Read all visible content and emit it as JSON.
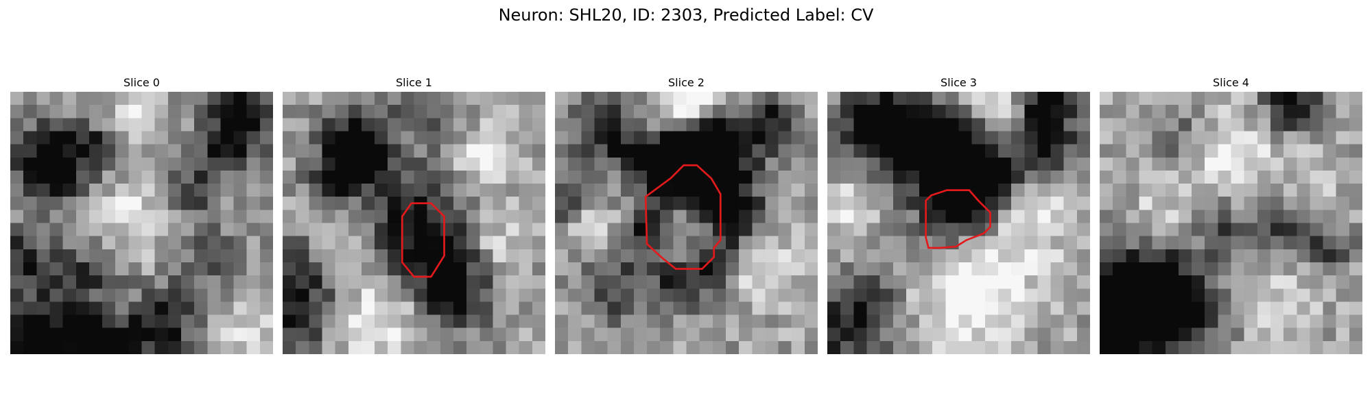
{
  "figure": {
    "title": "Neuron: SHL20, ID: 2303, Predicted Label: CV",
    "colormap": "gray",
    "outline_color": "#e31a1c"
  },
  "slices": [
    {
      "title": "Slice 0",
      "blobs": [
        {
          "x": 3.2,
          "y": 5.5,
          "r": 2.0,
          "s": -0.9
        },
        {
          "x": 7.5,
          "y": 4.0,
          "r": 1.3,
          "s": -0.4
        },
        {
          "x": 9.5,
          "y": 2.0,
          "r": 1.4,
          "s": 0.3
        },
        {
          "x": 0.8,
          "y": 13.0,
          "r": 1.8,
          "s": -0.5
        },
        {
          "x": 2.5,
          "y": 19.5,
          "r": 2.4,
          "s": -0.8
        },
        {
          "x": 7.5,
          "y": 19.5,
          "r": 1.4,
          "s": -0.8
        },
        {
          "x": 11.5,
          "y": 18.0,
          "r": 1.8,
          "s": -0.6
        },
        {
          "x": 16.5,
          "y": 4.5,
          "r": 1.7,
          "s": -0.4
        },
        {
          "x": 17.5,
          "y": 1.0,
          "r": 2.0,
          "s": -0.6
        },
        {
          "x": 13.5,
          "y": 7.5,
          "r": 1.5,
          "s": -0.4
        },
        {
          "x": 10.0,
          "y": 9.5,
          "r": 2.6,
          "s": 0.25
        },
        {
          "x": 15.0,
          "y": 13.0,
          "r": 2.2,
          "s": -0.3
        },
        {
          "x": 6.0,
          "y": 14.0,
          "r": 2.0,
          "s": -0.35
        },
        {
          "x": 17.5,
          "y": 17.5,
          "r": 1.8,
          "s": 0.2
        }
      ],
      "outline": []
    },
    {
      "title": "Slice 1",
      "blobs": [
        {
          "x": 5.5,
          "y": 4.5,
          "r": 1.8,
          "s": -0.95
        },
        {
          "x": 10.2,
          "y": 10.5,
          "r": 3.0,
          "s": -0.6
        },
        {
          "x": 12.5,
          "y": 13.5,
          "r": 1.8,
          "s": -0.4
        },
        {
          "x": 13.0,
          "y": 16.0,
          "r": 1.8,
          "s": -0.5
        },
        {
          "x": 1.5,
          "y": 14.0,
          "r": 2.2,
          "s": -0.55
        },
        {
          "x": 1.0,
          "y": 18.0,
          "r": 1.6,
          "s": -0.4
        },
        {
          "x": 3.5,
          "y": 7.0,
          "r": 1.2,
          "s": -0.35
        },
        {
          "x": 11.0,
          "y": 1.0,
          "r": 2.0,
          "s": -0.3
        },
        {
          "x": 15.5,
          "y": 5.0,
          "r": 1.7,
          "s": 0.4
        },
        {
          "x": 4.0,
          "y": 12.0,
          "r": 1.8,
          "s": 0.4
        },
        {
          "x": 7.5,
          "y": 17.0,
          "r": 2.4,
          "s": 0.35
        },
        {
          "x": 16.0,
          "y": 11.5,
          "r": 1.6,
          "s": 0.25
        }
      ],
      "outline": [
        [
          9.8,
          8.5
        ],
        [
          11.3,
          8.5
        ],
        [
          12.3,
          9.5
        ],
        [
          12.3,
          12.5
        ],
        [
          11.3,
          14.1
        ],
        [
          10.0,
          14.1
        ],
        [
          9.1,
          13.0
        ],
        [
          9.1,
          9.5
        ]
      ]
    },
    {
      "title": "Slice 2",
      "blobs": [
        {
          "x": 9.5,
          "y": 5.5,
          "r": 1.7,
          "s": -0.8
        },
        {
          "x": 12.0,
          "y": 4.5,
          "r": 1.6,
          "s": -0.8
        },
        {
          "x": 10.5,
          "y": 6.5,
          "r": 3.0,
          "s": -0.65
        },
        {
          "x": 4.0,
          "y": 3.0,
          "r": 2.0,
          "s": -0.5
        },
        {
          "x": 16.0,
          "y": 2.5,
          "r": 1.7,
          "s": -0.5
        },
        {
          "x": 7.0,
          "y": 11.0,
          "r": 1.6,
          "s": -0.55
        },
        {
          "x": 13.5,
          "y": 9.5,
          "r": 1.5,
          "s": -0.55
        },
        {
          "x": 12.0,
          "y": 13.0,
          "r": 1.5,
          "s": -0.45
        },
        {
          "x": 9.5,
          "y": 14.5,
          "r": 1.6,
          "s": -0.45
        },
        {
          "x": 4.5,
          "y": 15.0,
          "r": 1.8,
          "s": -0.4
        },
        {
          "x": 1.0,
          "y": 8.5,
          "r": 1.5,
          "s": -0.35
        },
        {
          "x": 9.5,
          "y": 10.5,
          "r": 2.2,
          "s": 0.45
        },
        {
          "x": 10.0,
          "y": 1.0,
          "r": 2.2,
          "s": 0.5
        },
        {
          "x": 3.0,
          "y": 10.0,
          "r": 1.6,
          "s": 0.3
        },
        {
          "x": 16.0,
          "y": 13.5,
          "r": 1.8,
          "s": 0.35
        }
      ],
      "outline": [
        [
          8.8,
          6.6
        ],
        [
          9.8,
          5.6
        ],
        [
          10.8,
          5.6
        ],
        [
          11.9,
          6.6
        ],
        [
          12.6,
          7.8
        ],
        [
          12.6,
          11.3
        ],
        [
          12.1,
          11.9
        ],
        [
          12.1,
          12.6
        ],
        [
          11.2,
          13.5
        ],
        [
          10.0,
          13.5
        ],
        [
          9.2,
          13.5
        ],
        [
          8.2,
          12.7
        ],
        [
          7.0,
          11.6
        ],
        [
          6.9,
          8.0
        ]
      ]
    },
    {
      "title": "Slice 3",
      "blobs": [
        {
          "x": 3.5,
          "y": 2.5,
          "r": 2.0,
          "s": -0.6
        },
        {
          "x": 6.5,
          "y": 3.5,
          "r": 2.0,
          "s": -0.65
        },
        {
          "x": 8.5,
          "y": 4.5,
          "r": 1.6,
          "s": -0.6
        },
        {
          "x": 10.5,
          "y": 5.5,
          "r": 2.2,
          "s": -0.85
        },
        {
          "x": 12.5,
          "y": 7.0,
          "r": 1.6,
          "s": -0.6
        },
        {
          "x": 16.5,
          "y": 1.0,
          "r": 1.5,
          "s": -0.7
        },
        {
          "x": 16.5,
          "y": 4.0,
          "r": 1.5,
          "s": -0.75
        },
        {
          "x": 9.5,
          "y": 9.5,
          "r": 2.4,
          "s": -0.45
        },
        {
          "x": 1.5,
          "y": 18.0,
          "r": 2.2,
          "s": -0.5
        },
        {
          "x": 3.5,
          "y": 15.5,
          "r": 1.4,
          "s": -0.3
        },
        {
          "x": 13.5,
          "y": 1.5,
          "r": 2.0,
          "s": 0.35
        },
        {
          "x": 15.5,
          "y": 9.0,
          "r": 2.4,
          "s": 0.35
        },
        {
          "x": 11.0,
          "y": 15.0,
          "r": 3.0,
          "s": 0.45
        },
        {
          "x": 1.5,
          "y": 9.0,
          "r": 1.6,
          "s": 0.3
        }
      ],
      "outline": [
        [
          7.9,
          7.9
        ],
        [
          9.1,
          7.5
        ],
        [
          10.8,
          7.5
        ],
        [
          11.5,
          8.3
        ],
        [
          12.4,
          9.2
        ],
        [
          12.4,
          10.3
        ],
        [
          11.9,
          10.8
        ],
        [
          10.6,
          11.3
        ],
        [
          9.8,
          11.8
        ],
        [
          8.6,
          11.9
        ],
        [
          7.7,
          11.9
        ],
        [
          7.5,
          11.1
        ],
        [
          7.5,
          8.3
        ]
      ]
    },
    {
      "title": "Slice 4",
      "blobs": [
        {
          "x": 2.5,
          "y": 15.5,
          "r": 2.8,
          "s": -0.75
        },
        {
          "x": 6.0,
          "y": 16.5,
          "r": 2.4,
          "s": -0.6
        },
        {
          "x": 1.0,
          "y": 18.5,
          "r": 2.0,
          "s": -0.6
        },
        {
          "x": 14.5,
          "y": 1.0,
          "r": 1.5,
          "s": -0.6
        },
        {
          "x": 14.0,
          "y": 10.5,
          "r": 1.5,
          "s": -0.4
        },
        {
          "x": 17.5,
          "y": 12.0,
          "r": 1.2,
          "s": -0.4
        },
        {
          "x": 9.5,
          "y": 10.5,
          "r": 1.4,
          "s": -0.35
        },
        {
          "x": 6.5,
          "y": 3.5,
          "r": 1.5,
          "s": -0.25
        },
        {
          "x": 10.0,
          "y": 4.5,
          "r": 2.4,
          "s": 0.3
        },
        {
          "x": 13.5,
          "y": 16.0,
          "r": 2.2,
          "s": 0.2
        },
        {
          "x": 4.5,
          "y": 9.0,
          "r": 1.8,
          "s": 0.2
        },
        {
          "x": 16.5,
          "y": 6.5,
          "r": 1.6,
          "s": 0.15
        }
      ],
      "outline": []
    }
  ]
}
